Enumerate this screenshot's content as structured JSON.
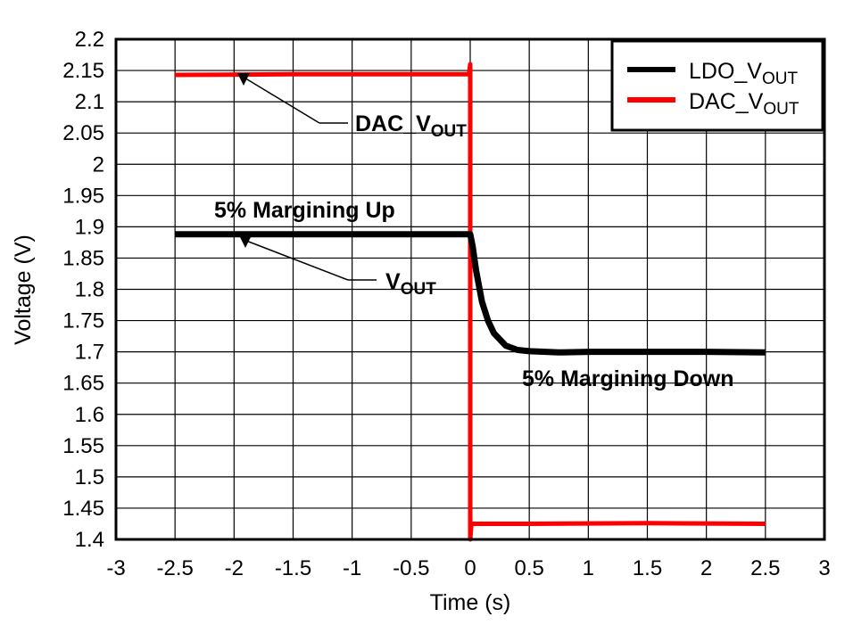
{
  "chart_data": {
    "type": "line",
    "xlabel": "Time (s)",
    "ylabel": "Voltage (V)",
    "xlim": [
      -3,
      3
    ],
    "ylim": [
      1.4,
      2.2
    ],
    "xticks": [
      "-3",
      "-2.5",
      "-2",
      "-1.5",
      "-1",
      "-0.5",
      "0",
      "0.5",
      "1",
      "1.5",
      "2",
      "2.5",
      "3"
    ],
    "yticks": [
      "1.4",
      "1.45",
      "1.5",
      "1.55",
      "1.6",
      "1.65",
      "1.7",
      "1.75",
      "1.8",
      "1.85",
      "1.9",
      "1.95",
      "2",
      "2.05",
      "2.1",
      "2.15",
      "2.2"
    ],
    "grid": true,
    "legend_position": "top-right",
    "series": [
      {
        "name": "LDO_VOUT",
        "color": "#000000",
        "x": [
          -2.5,
          -1.5,
          -0.5,
          0,
          0.02,
          0.05,
          0.1,
          0.15,
          0.2,
          0.3,
          0.4,
          0.5,
          0.75,
          1,
          1.5,
          2,
          2.5
        ],
        "y": [
          1.888,
          1.888,
          1.888,
          1.888,
          1.87,
          1.83,
          1.78,
          1.75,
          1.73,
          1.71,
          1.703,
          1.701,
          1.699,
          1.7,
          1.7,
          1.7,
          1.699
        ]
      },
      {
        "name": "DAC_VOUT",
        "color": "#ff0000",
        "x": [
          -2.5,
          -1.5,
          -0.5,
          -0.01,
          0,
          0,
          0.01,
          0.5,
          1.5,
          2.5
        ],
        "y": [
          2.143,
          2.144,
          2.144,
          2.144,
          2.16,
          1.4,
          1.425,
          1.425,
          1.426,
          1.425
        ]
      }
    ],
    "annotations": [
      {
        "text": "DAC_V",
        "sub": "OUT",
        "points_to": [
          -1.9,
          2.137
        ]
      },
      {
        "text": "V",
        "sub": "OUT",
        "points_to": [
          -1.9,
          1.881
        ]
      },
      {
        "text": "5% Margining Up"
      },
      {
        "text": "5% Margining Down"
      }
    ],
    "legend": [
      {
        "text": "LDO_V",
        "sub": "OUT"
      },
      {
        "text": "DAC_V",
        "sub": "OUT"
      }
    ]
  }
}
